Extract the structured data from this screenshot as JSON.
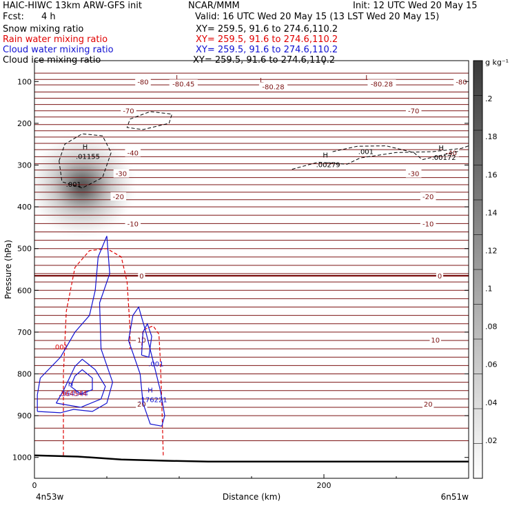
{
  "header": {
    "model": "HAIC-HIWC 13km ARW-GFS init",
    "org": "NCAR/MMM",
    "init": "Init: 12 UTC Wed 20 May 15",
    "fcst_label": "Fcst:",
    "fcst_value": "4 h",
    "valid": "Valid: 16 UTC Wed 20 May 15 (13 LST Wed 20 May 15)"
  },
  "fields": [
    {
      "name": "Snow mixing ratio",
      "xy": "XY= 259.5, 91.6 to 274.6,110.2",
      "color": "#000000"
    },
    {
      "name": "Rain water mixing ratio",
      "xy": "XY= 259.5, 91.6 to 274.6,110.2",
      "color": "#e00000"
    },
    {
      "name": "Cloud water mixing ratio",
      "xy": "XY= 259.5, 91.6 to 274.6,110.2",
      "color": "#1010d0"
    },
    {
      "name": "Cloud ice mixing ratio",
      "xy": "XY= 259.5, 91.6 to 274.6,110.2",
      "color": "#000000"
    }
  ],
  "colors": {
    "temperature": "#7a1010",
    "rain": "#e00000",
    "cloud_water": "#1010d0",
    "ice": "#000000",
    "terrain": "#000000"
  },
  "chart_data": {
    "type": "cross-section",
    "xlabel": "Distance (km)",
    "ylabel": "Pressure (hPa)",
    "xlim": [
      0,
      300
    ],
    "ylim": [
      1050,
      50
    ],
    "x_ticks": [
      {
        "v": 0,
        "label": "0"
      },
      {
        "v": 200,
        "label": "200"
      }
    ],
    "y_ticks": [
      100,
      200,
      300,
      400,
      500,
      600,
      700,
      800,
      900,
      1000
    ],
    "start_label": "4n53w",
    "end_label": "6n51w",
    "colorbar": {
      "unit": "g kg⁻¹",
      "ticks": [
        ".02",
        ".04",
        ".06",
        ".08",
        ".1",
        ".12",
        ".14",
        ".16",
        ".18",
        ".2"
      ],
      "min": 0,
      "max": 0.22
    },
    "snow_blob": {
      "x": 33,
      "p": 350,
      "peak": 0.16,
      "rx": 33,
      "rp": 110
    },
    "temperature_lines": {
      "comment_free": true,
      "levels_p": [
        80,
        95,
        108,
        125,
        140,
        155,
        170,
        185,
        203,
        218,
        233,
        248,
        263,
        280,
        297,
        312,
        330,
        347,
        365,
        383,
        400,
        420,
        440,
        460,
        480,
        500,
        520,
        540,
        560,
        580,
        600,
        620,
        640,
        660,
        680,
        700,
        720,
        740,
        760,
        780,
        800,
        820,
        840,
        860,
        880,
        900,
        930,
        960
      ]
    },
    "temperature_labels": [
      {
        "x": 75,
        "p": 100,
        "text": "-80"
      },
      {
        "x": 295,
        "p": 100,
        "text": "-80"
      },
      {
        "x": 65,
        "p": 170,
        "text": "-70"
      },
      {
        "x": 262,
        "p": 170,
        "text": "-70"
      },
      {
        "x": 68,
        "p": 270,
        "text": "-40"
      },
      {
        "x": 288,
        "p": 270,
        "text": "-40"
      },
      {
        "x": 60,
        "p": 320,
        "text": "-30"
      },
      {
        "x": 262,
        "p": 320,
        "text": "-30"
      },
      {
        "x": 58,
        "p": 375,
        "text": "-20"
      },
      {
        "x": 272,
        "p": 375,
        "text": "-20"
      },
      {
        "x": 68,
        "p": 440,
        "text": "-10"
      },
      {
        "x": 272,
        "p": 440,
        "text": "-10"
      },
      {
        "x": 74,
        "p": 565,
        "text": "0"
      },
      {
        "x": 280,
        "p": 565,
        "text": "0"
      },
      {
        "x": 74,
        "p": 718,
        "text": "10"
      },
      {
        "x": 277,
        "p": 718,
        "text": "10"
      },
      {
        "x": 74,
        "p": 872,
        "text": "20"
      },
      {
        "x": 272,
        "p": 872,
        "text": "20"
      }
    ],
    "lows": [
      {
        "x": 99,
        "p": 90,
        "label": "L",
        "value": "-80.45",
        "vx": 103,
        "vp": 105
      },
      {
        "x": 157,
        "p": 96,
        "label": "L",
        "value": "-80.28",
        "vx": 165,
        "vp": 112
      },
      {
        "x": 230,
        "p": 90,
        "label": "L",
        "value": "-80.28",
        "vx": 240,
        "vp": 105
      }
    ],
    "ice_contours": [
      {
        "level": ".001",
        "points": [
          [
            17,
            290
          ],
          [
            21,
            250
          ],
          [
            33,
            225
          ],
          [
            47,
            230
          ],
          [
            53,
            270
          ],
          [
            47,
            330
          ],
          [
            33,
            355
          ],
          [
            19,
            340
          ],
          [
            17,
            290
          ]
        ],
        "label_x": 27,
        "label_p": 345
      },
      {
        "level": ".001",
        "points": [
          [
            66,
            190
          ],
          [
            80,
            172
          ],
          [
            95,
            178
          ],
          [
            93,
            200
          ],
          [
            75,
            215
          ],
          [
            64,
            210
          ],
          [
            66,
            190
          ]
        ]
      },
      {
        "level": ".001",
        "points": [
          [
            178,
            310
          ],
          [
            196,
            293
          ],
          [
            216,
            298
          ],
          [
            225,
            283
          ],
          [
            250,
            270
          ],
          [
            275,
            268
          ],
          [
            295,
            260
          ],
          [
            300,
            254
          ]
        ],
        "label_x": 229,
        "label_p": 267
      },
      {
        "level": ".001",
        "points": [
          [
            206,
            268
          ],
          [
            223,
            255
          ],
          [
            243,
            254
          ],
          [
            262,
            270
          ],
          [
            268,
            287
          ],
          [
            293,
            267
          ]
        ]
      }
    ],
    "ice_maxima": [
      {
        "x": 35,
        "p": 275,
        "label": "H",
        "value": ".01155"
      },
      {
        "x": 201,
        "p": 295,
        "label": "H",
        "value": ".00279"
      },
      {
        "x": 281,
        "p": 278,
        "label": "H",
        "value": ".00172"
      }
    ],
    "rain_contours": [
      {
        "level": ".001",
        "points": [
          [
            20,
            995
          ],
          [
            20,
            800
          ],
          [
            22,
            650
          ],
          [
            28,
            545
          ],
          [
            38,
            505
          ],
          [
            50,
            500
          ],
          [
            60,
            520
          ],
          [
            64,
            580
          ],
          [
            66,
            690
          ],
          [
            66,
            740
          ]
        ],
        "label_x": 18,
        "label_p": 735
      },
      {
        "level": ".001",
        "points": [
          [
            89,
            995
          ],
          [
            88,
            870
          ],
          [
            87,
            770
          ],
          [
            86,
            705
          ],
          [
            82,
            685
          ],
          [
            75,
            695
          ],
          [
            74,
            740
          ]
        ]
      }
    ],
    "cloud_contours": [
      {
        "level": ".001",
        "points": [
          [
            2,
            890
          ],
          [
            18,
            893
          ],
          [
            27,
            885
          ],
          [
            40,
            890
          ],
          [
            50,
            870
          ],
          [
            54,
            820
          ],
          [
            46,
            740
          ],
          [
            45,
            630
          ],
          [
            52,
            560
          ],
          [
            50,
            470
          ],
          [
            44,
            520
          ],
          [
            42,
            600
          ],
          [
            38,
            660
          ],
          [
            28,
            700
          ],
          [
            18,
            760
          ],
          [
            4,
            810
          ],
          [
            2,
            850
          ],
          [
            2,
            890
          ]
        ]
      },
      {
        "level": ".001",
        "points": [
          [
            65,
            720
          ],
          [
            68,
            660
          ],
          [
            72,
            640
          ],
          [
            77,
            700
          ],
          [
            82,
            770
          ],
          [
            87,
            840
          ],
          [
            90,
            900
          ],
          [
            88,
            925
          ],
          [
            80,
            920
          ],
          [
            75,
            870
          ],
          [
            73,
            800
          ],
          [
            65,
            720
          ]
        ],
        "label_x": 84,
        "label_p": 775
      },
      {
        "level": "",
        "points": [
          [
            74,
            755
          ],
          [
            75,
            700
          ],
          [
            78,
            680
          ],
          [
            81,
            710
          ],
          [
            79,
            760
          ],
          [
            74,
            755
          ]
        ]
      },
      {
        "level": "",
        "points": [
          [
            15,
            870
          ],
          [
            32,
            880
          ],
          [
            46,
            860
          ],
          [
            49,
            830
          ],
          [
            42,
            790
          ],
          [
            33,
            765
          ],
          [
            28,
            782
          ],
          [
            20,
            840
          ],
          [
            15,
            870
          ]
        ]
      },
      {
        "level": "",
        "points": [
          [
            25,
            830
          ],
          [
            32,
            848
          ],
          [
            40,
            838
          ],
          [
            40,
            810
          ],
          [
            33,
            790
          ],
          [
            28,
            805
          ],
          [
            25,
            830
          ]
        ]
      }
    ],
    "cloud_maxima": [
      {
        "x": 80,
        "p": 858,
        "label": "H",
        "value": ".176221"
      }
    ],
    "mixed_maxima": [
      {
        "x": 25,
        "p": 843,
        "label": "H",
        "rain_value": ".364544",
        "cloud_value": ".364544"
      }
    ],
    "terrain": [
      [
        0,
        995
      ],
      [
        30,
        998
      ],
      [
        60,
        1005
      ],
      [
        90,
        1008
      ],
      [
        120,
        1010
      ],
      [
        150,
        1010
      ],
      [
        180,
        1010
      ],
      [
        220,
        1010
      ],
      [
        260,
        1010
      ],
      [
        300,
        1010
      ]
    ]
  }
}
